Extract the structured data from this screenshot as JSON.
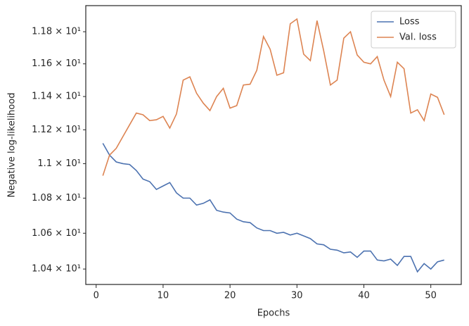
{
  "chart_data": {
    "type": "line",
    "xlabel": "Epochs",
    "ylabel": "Negative log-likelihood",
    "x": [
      1,
      2,
      3,
      4,
      5,
      6,
      7,
      8,
      9,
      10,
      11,
      12,
      13,
      14,
      15,
      16,
      17,
      18,
      19,
      20,
      21,
      22,
      23,
      24,
      25,
      26,
      27,
      28,
      29,
      30,
      31,
      32,
      33,
      34,
      35,
      36,
      37,
      38,
      39,
      40,
      41,
      42,
      43,
      44,
      45,
      46,
      47,
      48,
      49,
      50,
      51,
      52
    ],
    "series": [
      {
        "name": "Loss",
        "color": "#4c72b0",
        "values": [
          11.12,
          11.05,
          11.01,
          11.0,
          10.995,
          10.96,
          10.91,
          10.895,
          10.85,
          10.87,
          10.89,
          10.83,
          10.8,
          10.8,
          10.76,
          10.77,
          10.79,
          10.73,
          10.72,
          10.715,
          10.68,
          10.665,
          10.66,
          10.63,
          10.615,
          10.615,
          10.6,
          10.605,
          10.59,
          10.6,
          10.585,
          10.57,
          10.54,
          10.535,
          10.51,
          10.505,
          10.49,
          10.495,
          10.465,
          10.5,
          10.5,
          10.45,
          10.445,
          10.455,
          10.42,
          10.47,
          10.47,
          10.385,
          10.43,
          10.4,
          10.44,
          10.45
        ]
      },
      {
        "name": "Val. loss",
        "color": "#dd8452",
        "values": [
          10.93,
          11.05,
          11.09,
          11.16,
          11.23,
          11.3,
          11.29,
          11.255,
          11.26,
          11.28,
          11.21,
          11.295,
          11.5,
          11.52,
          11.42,
          11.36,
          11.315,
          11.4,
          11.45,
          11.33,
          11.345,
          11.47,
          11.475,
          11.56,
          11.77,
          11.69,
          11.53,
          11.545,
          11.85,
          11.88,
          11.66,
          11.62,
          11.87,
          11.68,
          11.47,
          11.5,
          11.76,
          11.8,
          11.655,
          11.61,
          11.6,
          11.645,
          11.5,
          11.4,
          11.61,
          11.57,
          11.3,
          11.32,
          11.255,
          11.415,
          11.395,
          11.29
        ]
      }
    ],
    "xlim": [
      -1.55,
      54.55
    ],
    "xticks": [
      0,
      10,
      20,
      30,
      40,
      50
    ],
    "ylim": [
      10.315,
      11.965
    ],
    "yscale": "log",
    "yticks": [
      {
        "value": 10.4,
        "label": "1.04 × 10¹"
      },
      {
        "value": 10.6,
        "label": "1.06 × 10¹"
      },
      {
        "value": 10.8,
        "label": "1.08 × 10¹"
      },
      {
        "value": 11.0,
        "label": "1.1 × 10¹"
      },
      {
        "value": 11.2,
        "label": "1.12 × 10¹"
      },
      {
        "value": 11.4,
        "label": "1.14 × 10¹"
      },
      {
        "value": 11.6,
        "label": "1.16 × 10¹"
      },
      {
        "value": 11.8,
        "label": "1.18 × 10¹"
      }
    ],
    "grid": false,
    "legend": "upper right"
  }
}
